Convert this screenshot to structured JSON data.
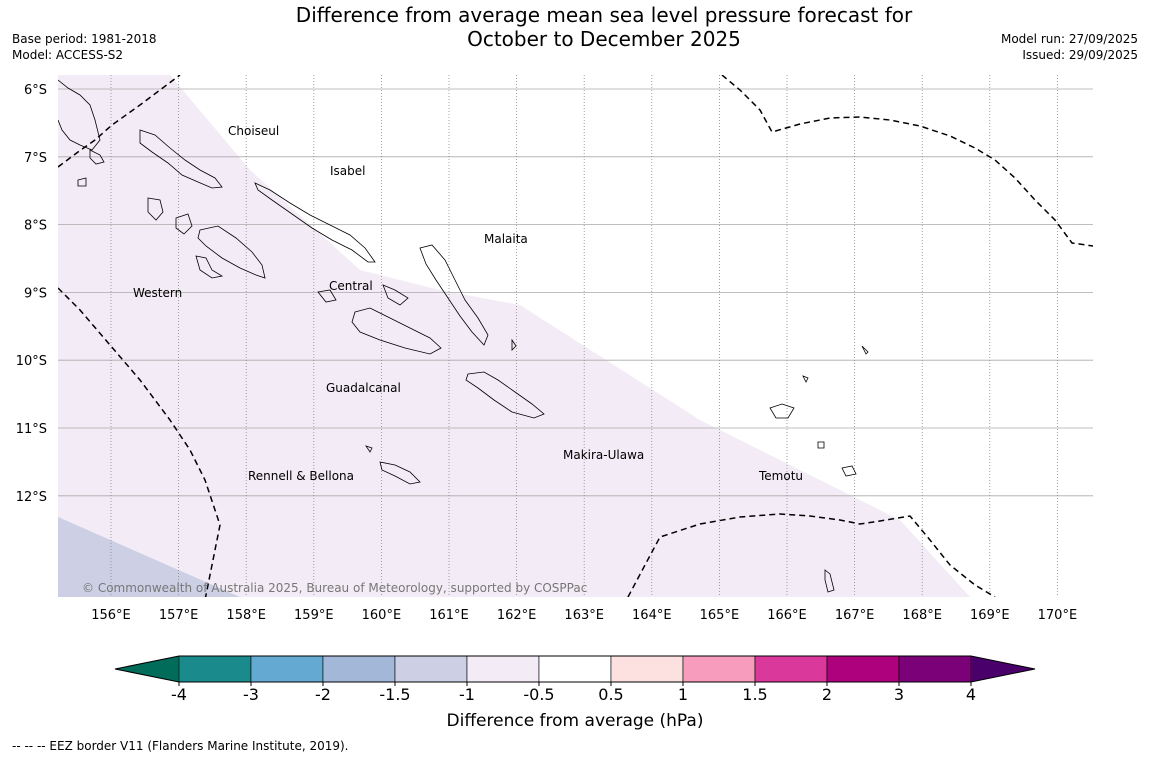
{
  "title": {
    "line1": "Difference from average mean sea level pressure forecast for",
    "line2": "October to December 2025"
  },
  "meta": {
    "base_period": "Base period: 1981-2018",
    "model": "Model: ACCESS-S2",
    "model_run": "Model run: 27/09/2025",
    "issued": "Issued: 29/09/2025"
  },
  "map": {
    "lat_labels": [
      "6°S",
      "7°S",
      "8°S",
      "9°S",
      "10°S",
      "11°S",
      "12°S"
    ],
    "lat_values": [
      -6,
      -7,
      -8,
      -9,
      -10,
      -11,
      -12
    ],
    "lon_labels": [
      "156°E",
      "157°E",
      "158°E",
      "159°E",
      "160°E",
      "161°E",
      "162°E",
      "163°E",
      "164°E",
      "165°E",
      "166°E",
      "167°E",
      "168°E",
      "169°E",
      "170°E"
    ],
    "lon_values": [
      156,
      157,
      158,
      159,
      160,
      161,
      162,
      163,
      164,
      165,
      166,
      167,
      168,
      169,
      170
    ],
    "provinces": [
      "Choiseul",
      "Isabel",
      "Malaita",
      "Western",
      "Central",
      "Guadalcanal",
      "Makira-Ulawa",
      "Rennell & Bellona",
      "Temotu"
    ],
    "copyright": "© Commonwealth of Australia 2025, Bureau of Meteorology, supported by COSPPac"
  },
  "colorbar": {
    "ticks": [
      "-4",
      "-3",
      "-2",
      "-1.5",
      "-1",
      "-0.5",
      "0.5",
      "1",
      "1.5",
      "2",
      "3",
      "4"
    ],
    "colors": [
      "#1a8a8c",
      "#64a9d1",
      "#a3b8d9",
      "#cdcfe4",
      "#f3ebf5",
      "#ffffff",
      "#fde0e0",
      "#f79cbc",
      "#db389c",
      "#ae017e",
      "#7a0177"
    ],
    "low_extend_color": "#016c59",
    "high_extend_color": "#49006a",
    "title": "Difference from average (hPa)"
  },
  "legend_note": "--  --  -- EEZ border V11 (Flanders Marine Institute, 2019)."
}
